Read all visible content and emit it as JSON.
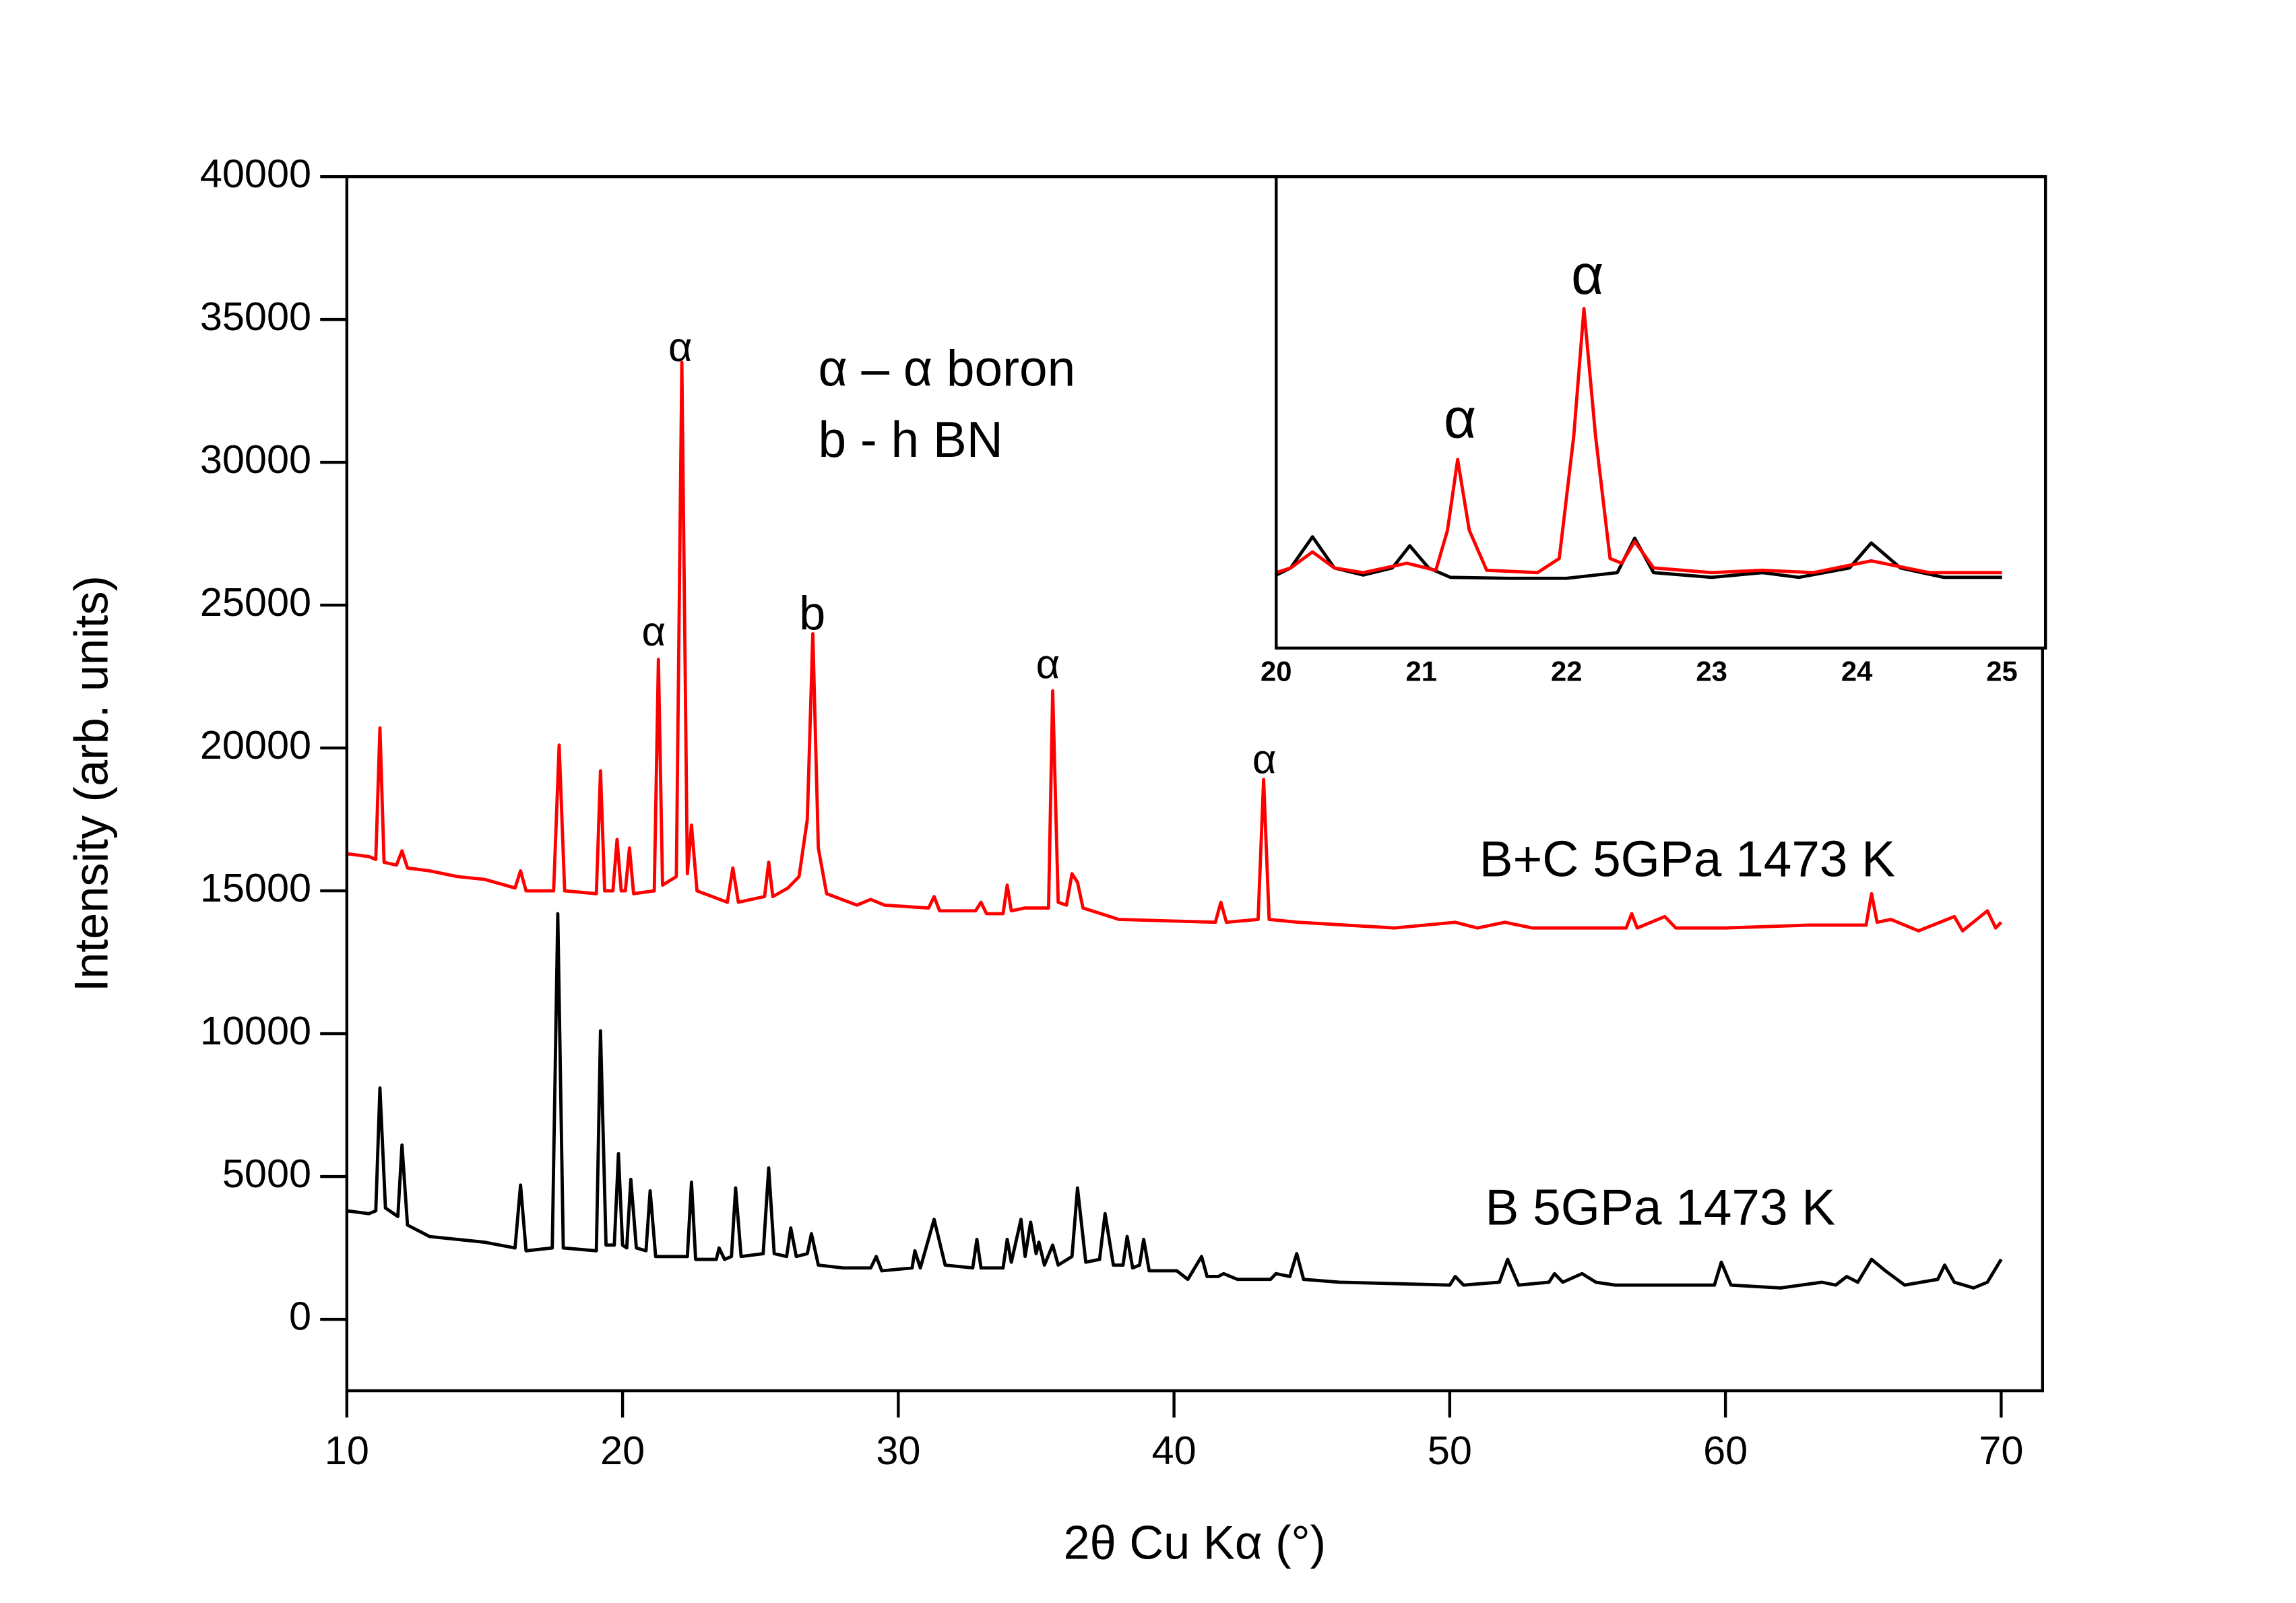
{
  "chart_data": [
    {
      "type": "line",
      "x_label": "2θ Cu Kα (°)",
      "y_label": "Intensity (arb. units)",
      "annotations": [
        "α – α boron",
        "b - h BN",
        "α",
        "α",
        "b",
        "α",
        "α"
      ],
      "xlim": [
        10,
        71.5
      ],
      "xticks": [
        10,
        20,
        30,
        40,
        50,
        60,
        70
      ],
      "ylim": [
        -2500,
        40000
      ],
      "yticks": [
        0,
        5000,
        10000,
        15000,
        20000,
        25000,
        30000,
        35000,
        40000
      ],
      "series": [
        {
          "name": "B+C 5GPa 1473 K",
          "color": "#ff0000",
          "x": [
            10,
            10.8,
            11.05,
            11.2,
            11.35,
            11.8,
            12.0,
            12.2,
            13,
            14,
            15,
            16.1,
            16.3,
            16.5,
            17.5,
            17.7,
            17.9,
            19.05,
            19.2,
            19.35,
            19.65,
            19.8,
            19.95,
            20.1,
            20.25,
            20.4,
            21.15,
            21.3,
            21.45,
            21.95,
            22.15,
            22.35,
            22.5,
            22.7,
            23.8,
            24.0,
            24.2,
            25.15,
            25.3,
            25.45,
            26.0,
            26.4,
            26.7,
            26.9,
            27.1,
            27.4,
            28.5,
            29.0,
            29.5,
            31.1,
            31.3,
            31.5,
            32.8,
            33.0,
            33.2,
            33.8,
            33.95,
            34.1,
            34.6,
            35.45,
            35.6,
            35.8,
            36.1,
            36.3,
            36.5,
            36.7,
            38,
            41.5,
            41.7,
            41.9,
            43.05,
            43.25,
            43.45,
            44.5,
            48,
            50.2,
            51,
            52,
            53,
            56.4,
            56.6,
            56.8,
            57.8,
            58.2,
            60,
            63,
            65.1,
            65.3,
            65.5,
            66,
            67,
            68.3,
            68.6,
            69.5,
            69.8,
            70
          ],
          "values": [
            16300,
            16200,
            16100,
            20700,
            16000,
            15900,
            16400,
            15800,
            15700,
            15500,
            15400,
            15100,
            15700,
            15000,
            15000,
            20100,
            15000,
            14900,
            19200,
            15000,
            15000,
            16800,
            15000,
            15000,
            16500,
            14900,
            15000,
            23100,
            15200,
            15500,
            33500,
            15600,
            17300,
            15000,
            14600,
            15800,
            14600,
            14800,
            16000,
            14800,
            15100,
            15500,
            17500,
            24000,
            16500,
            14900,
            14500,
            14700,
            14500,
            14400,
            14800,
            14300,
            14300,
            14600,
            14200,
            14200,
            15200,
            14300,
            14400,
            14400,
            22000,
            14600,
            14500,
            15600,
            15300,
            14400,
            14000,
            13900,
            14600,
            13900,
            14000,
            18900,
            14000,
            13900,
            13700,
            13900,
            13700,
            13900,
            13700,
            13700,
            14200,
            13700,
            14100,
            13700,
            13700,
            13800,
            13800,
            14900,
            13900,
            14000,
            13600,
            14100,
            13600,
            14300,
            13700,
            13900
          ]
        },
        {
          "name": "B 5GPa 1473 K",
          "color": "#000000",
          "x": [
            10,
            10.8,
            11.05,
            11.2,
            11.4,
            11.85,
            12.0,
            12.2,
            13,
            15,
            16.1,
            16.3,
            16.5,
            17.45,
            17.65,
            17.85,
            19.05,
            19.2,
            19.4,
            19.7,
            19.85,
            20.0,
            20.15,
            20.3,
            20.5,
            20.85,
            21.0,
            21.2,
            22.35,
            22.5,
            22.65,
            23.4,
            23.5,
            23.7,
            23.95,
            24.1,
            24.3,
            25.1,
            25.3,
            25.5,
            25.95,
            26.1,
            26.3,
            26.7,
            26.85,
            27.1,
            28,
            29.0,
            29.2,
            29.4,
            30.5,
            30.6,
            30.8,
            31.3,
            31.7,
            32.7,
            32.85,
            33.0,
            33.8,
            33.95,
            34.1,
            34.45,
            34.6,
            34.8,
            35.0,
            35.1,
            35.3,
            35.6,
            35.8,
            36.3,
            36.5,
            36.8,
            37.3,
            37.5,
            37.8,
            38.15,
            38.3,
            38.5,
            38.75,
            38.9,
            39.1,
            40.1,
            40.5,
            41.0,
            41.2,
            41.6,
            41.8,
            42.3,
            43.5,
            43.7,
            44.2,
            44.45,
            44.7,
            46,
            50,
            50.2,
            50.5,
            51.8,
            52.1,
            52.5,
            53.6,
            53.8,
            54.1,
            54.8,
            55.3,
            56,
            59.6,
            59.85,
            60.2,
            62,
            63.5,
            64,
            64.4,
            64.8,
            65.3,
            65.8,
            66.5,
            67.7,
            67.95,
            68.3,
            69,
            69.5,
            70
          ],
          "values": [
            3800,
            3700,
            3800,
            8100,
            3900,
            3600,
            6100,
            3300,
            2900,
            2700,
            2500,
            4700,
            2400,
            2500,
            14200,
            2500,
            2400,
            10100,
            2600,
            2600,
            5800,
            2600,
            2500,
            4900,
            2500,
            2400,
            4500,
            2200,
            2200,
            4800,
            2100,
            2100,
            2500,
            2100,
            2200,
            4600,
            2200,
            2300,
            5300,
            2300,
            2200,
            3200,
            2200,
            2300,
            3000,
            1900,
            1800,
            1800,
            2200,
            1700,
            1800,
            2400,
            1800,
            3500,
            1900,
            1800,
            2800,
            1800,
            1800,
            2800,
            2000,
            3500,
            2200,
            3400,
            2300,
            2700,
            1900,
            2600,
            1900,
            2200,
            4600,
            2000,
            2100,
            3700,
            1900,
            1900,
            2900,
            1800,
            1900,
            2800,
            1700,
            1700,
            1400,
            2200,
            1500,
            1500,
            1600,
            1400,
            1400,
            1600,
            1500,
            2300,
            1400,
            1300,
            1200,
            1500,
            1200,
            1300,
            2100,
            1200,
            1300,
            1600,
            1300,
            1600,
            1300,
            1200,
            1200,
            2000,
            1200,
            1100,
            1300,
            1200,
            1500,
            1300,
            2100,
            1700,
            1200,
            1400,
            1900,
            1300,
            1100,
            1300,
            2100
          ]
        }
      ]
    },
    {
      "type": "line",
      "annotations": [
        "α",
        "α"
      ],
      "xlim": [
        20,
        25.3
      ],
      "xticks": [
        20,
        21,
        22,
        23,
        24,
        25
      ],
      "ylim": [
        0,
        100
      ],
      "series": [
        {
          "color": "#000000",
          "x": [
            20,
            20.1,
            20.25,
            20.4,
            20.6,
            20.8,
            20.92,
            21.05,
            21.2,
            21.6,
            22.0,
            22.35,
            22.47,
            22.6,
            23.0,
            23.35,
            23.6,
            23.95,
            24.1,
            24.3,
            24.6,
            25
          ],
          "values": [
            15.5,
            17,
            23.6,
            17,
            15.5,
            17,
            21.7,
            17,
            15,
            14.8,
            14.8,
            16,
            23.3,
            16,
            15,
            16,
            15,
            17,
            22.3,
            17,
            15,
            15
          ]
        },
        {
          "color": "#ff0000",
          "x": [
            20,
            20.1,
            20.25,
            20.4,
            20.6,
            20.9,
            21.1,
            21.18,
            21.25,
            21.33,
            21.45,
            21.8,
            21.95,
            22.05,
            22.12,
            22.2,
            22.3,
            22.38,
            22.47,
            22.6,
            23.0,
            23.35,
            23.7,
            24.1,
            24.5,
            25
          ],
          "values": [
            16,
            17,
            20.4,
            17,
            16,
            18,
            16.5,
            25,
            40,
            25,
            16.5,
            16,
            19,
            45,
            72,
            45,
            19,
            18,
            22.6,
            17,
            16,
            16.5,
            16,
            18.5,
            16,
            16
          ]
        }
      ]
    }
  ]
}
